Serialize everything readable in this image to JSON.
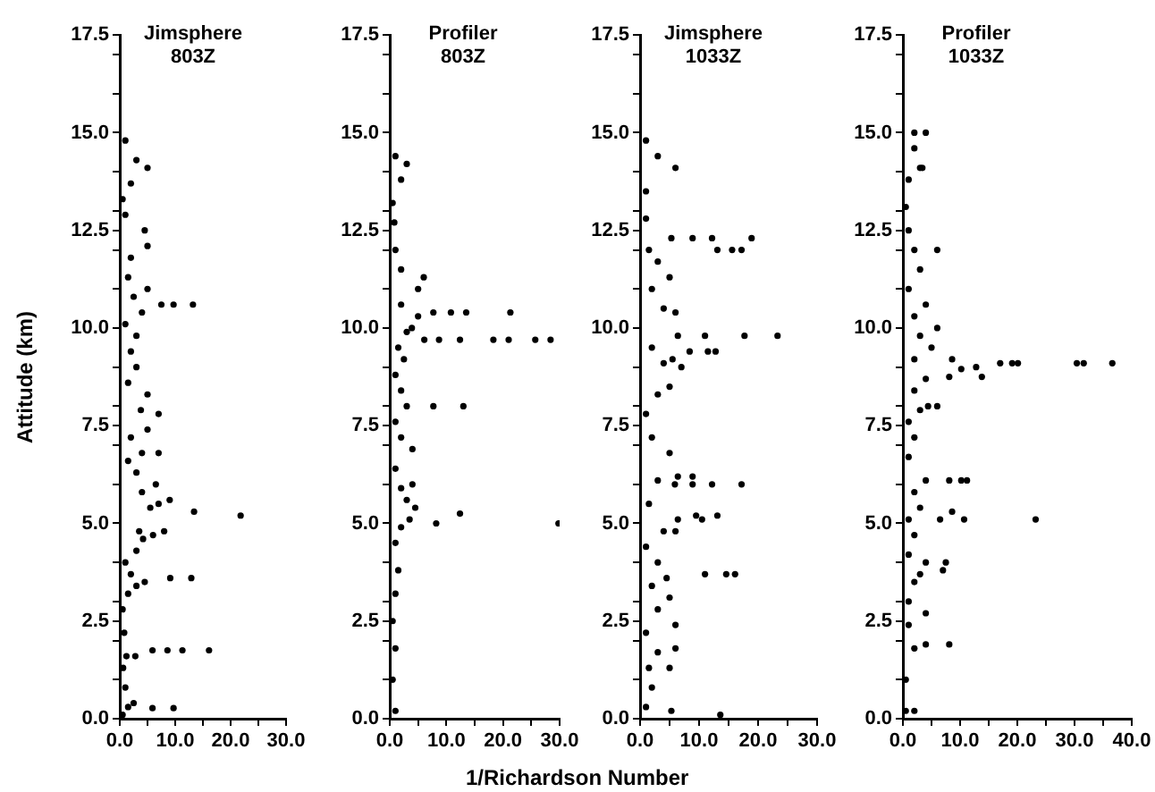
{
  "chart_data": [
    {
      "type": "scatter",
      "title": "Jimsphere 803Z",
      "ylabel": "Attitude (km)",
      "marker": "circle",
      "grid": false,
      "legend": false,
      "xlim": [
        0,
        30
      ],
      "xticks": [
        {
          "value": 0,
          "label": "0.0"
        },
        {
          "value": 5,
          "label": null
        },
        {
          "value": 10,
          "label": "10.0"
        },
        {
          "value": 15,
          "label": null
        },
        {
          "value": 20,
          "label": "20.0"
        },
        {
          "value": 25,
          "label": null
        },
        {
          "value": 30,
          "label": "30.0"
        }
      ],
      "ylim": [
        0,
        17.5
      ],
      "yticks": [
        {
          "value": 0,
          "label": "0.0"
        },
        {
          "value": 2.5,
          "label": "2.5"
        },
        {
          "value": 5,
          "label": "5.0"
        },
        {
          "value": 7.5,
          "label": "7.5"
        },
        {
          "value": 10,
          "label": "10.0"
        },
        {
          "value": 12.5,
          "label": "12.5"
        },
        {
          "value": 15,
          "label": "15.0"
        },
        {
          "value": 17.5,
          "label": "17.5"
        },
        {
          "value": 1,
          "label": null
        },
        {
          "value": 2,
          "label": null
        },
        {
          "value": 3,
          "label": null
        },
        {
          "value": 4,
          "label": null
        },
        {
          "value": 6,
          "label": null
        },
        {
          "value": 7,
          "label": null
        },
        {
          "value": 8,
          "label": null
        },
        {
          "value": 9,
          "label": null
        },
        {
          "value": 11,
          "label": null
        },
        {
          "value": 12,
          "label": null
        },
        {
          "value": 13,
          "label": null
        },
        {
          "value": 14,
          "label": null
        },
        {
          "value": 16,
          "label": null
        },
        {
          "value": 17,
          "label": null
        }
      ],
      "series": [
        {
          "color": "#000000",
          "x": [
            0.5,
            1.5,
            2.5,
            1,
            0.6,
            1.2,
            2.8,
            0.8,
            0.5,
            1.5,
            3,
            4.5,
            2,
            1,
            3,
            4.2,
            6,
            3.5,
            8,
            5.5,
            7,
            9,
            4,
            6.5,
            3,
            1.5,
            4,
            7,
            2,
            5,
            3.8,
            7,
            5,
            1.5,
            3,
            2,
            3,
            1,
            4,
            2.5,
            5,
            1.5,
            2,
            5,
            4.5,
            1,
            0.5,
            2,
            5,
            3,
            1,
            7.5,
            9.7,
            13.2,
            13.4,
            21.8,
            9.1,
            12.9,
            5.9,
            8.6,
            11.3,
            16.1,
            5.9,
            9.7
          ],
          "values": [
            0.1,
            0.3,
            0.4,
            0.8,
            1.3,
            1.6,
            1.6,
            2.2,
            2.8,
            3.2,
            3.4,
            3.5,
            3.7,
            4,
            4.3,
            4.6,
            4.7,
            4.8,
            4.8,
            5.4,
            5.5,
            5.6,
            5.8,
            6,
            6.3,
            6.6,
            6.8,
            6.8,
            7.2,
            7.4,
            7.9,
            7.8,
            8.3,
            8.6,
            9,
            9.4,
            9.8,
            10.1,
            10.4,
            10.8,
            11,
            11.3,
            11.8,
            12.1,
            12.5,
            12.9,
            13.3,
            13.7,
            14.1,
            14.3,
            14.8,
            10.6,
            10.6,
            10.6,
            5.3,
            5.2,
            3.6,
            3.6,
            1.75,
            1.75,
            1.75,
            1.75,
            0.27,
            0.27
          ]
        }
      ]
    },
    {
      "type": "scatter",
      "title": "Profiler 803Z",
      "xlabel": "1/Richardson Number",
      "marker": "circle",
      "grid": false,
      "legend": false,
      "xlim": [
        0,
        30
      ],
      "xticks": [
        {
          "value": 0,
          "label": "0.0"
        },
        {
          "value": 5,
          "label": null
        },
        {
          "value": 10,
          "label": "10.0"
        },
        {
          "value": 15,
          "label": null
        },
        {
          "value": 20,
          "label": "20.0"
        },
        {
          "value": 25,
          "label": null
        },
        {
          "value": 30,
          "label": "30.0"
        }
      ],
      "ylim": [
        0,
        17.5
      ],
      "yticks": [
        {
          "value": 0,
          "label": "0.0"
        },
        {
          "value": 2.5,
          "label": "2.5"
        },
        {
          "value": 5,
          "label": "5.0"
        },
        {
          "value": 7.5,
          "label": "7.5"
        },
        {
          "value": 10,
          "label": "10.0"
        },
        {
          "value": 12.5,
          "label": "12.5"
        },
        {
          "value": 15,
          "label": "15.0"
        },
        {
          "value": 17.5,
          "label": "17.5"
        },
        {
          "value": 1,
          "label": null
        },
        {
          "value": 2,
          "label": null
        },
        {
          "value": 3,
          "label": null
        },
        {
          "value": 4,
          "label": null
        },
        {
          "value": 6,
          "label": null
        },
        {
          "value": 7,
          "label": null
        },
        {
          "value": 8,
          "label": null
        },
        {
          "value": 9,
          "label": null
        },
        {
          "value": 11,
          "label": null
        },
        {
          "value": 12,
          "label": null
        },
        {
          "value": 13,
          "label": null
        },
        {
          "value": 14,
          "label": null
        },
        {
          "value": 16,
          "label": null
        },
        {
          "value": 17,
          "label": null
        }
      ],
      "series": [
        {
          "color": "#000000",
          "x": [
            1,
            0.5,
            1,
            0.5,
            1,
            1.5,
            1,
            2,
            3.5,
            4.5,
            3,
            2,
            4,
            1,
            4,
            2,
            1,
            3,
            2,
            1,
            2.5,
            1.5,
            3,
            5,
            2,
            5,
            6,
            2,
            1,
            0.8,
            0.5,
            2,
            3,
            1,
            7.7,
            10.8,
            13.5,
            21.3,
            6.1,
            8.7,
            12.4,
            18.3,
            21,
            25.7,
            28.4,
            3.9,
            7.7,
            13,
            12.4,
            8.2,
            29.8
          ],
          "values": [
            0.2,
            1,
            1.8,
            2.5,
            3.2,
            3.8,
            4.5,
            4.9,
            5.1,
            5.4,
            5.6,
            5.9,
            6,
            6.4,
            6.9,
            7.2,
            7.6,
            8,
            8.4,
            8.8,
            9.2,
            9.5,
            9.9,
            10.3,
            10.6,
            11,
            11.3,
            11.5,
            12,
            12.7,
            13.2,
            13.8,
            14.2,
            14.4,
            10.4,
            10.4,
            10.4,
            10.4,
            9.7,
            9.7,
            9.7,
            9.7,
            9.7,
            9.7,
            9.7,
            10,
            8,
            8,
            5.25,
            5,
            5
          ]
        }
      ]
    },
    {
      "type": "scatter",
      "title": "Jimsphere 1033Z",
      "marker": "circle",
      "grid": false,
      "legend": false,
      "xlim": [
        0,
        30
      ],
      "xticks": [
        {
          "value": 0,
          "label": "0.0"
        },
        {
          "value": 5,
          "label": null
        },
        {
          "value": 10,
          "label": "10.0"
        },
        {
          "value": 15,
          "label": null
        },
        {
          "value": 20,
          "label": "20.0"
        },
        {
          "value": 25,
          "label": null
        },
        {
          "value": 30,
          "label": "30.0"
        }
      ],
      "ylim": [
        0,
        17.5
      ],
      "yticks": [
        {
          "value": 0,
          "label": "0.0"
        },
        {
          "value": 2.5,
          "label": "2.5"
        },
        {
          "value": 5,
          "label": "5.0"
        },
        {
          "value": 7.5,
          "label": "7.5"
        },
        {
          "value": 10,
          "label": "10.0"
        },
        {
          "value": 12.5,
          "label": "12.5"
        },
        {
          "value": 15,
          "label": "15.0"
        },
        {
          "value": 17.5,
          "label": "17.5"
        },
        {
          "value": 1,
          "label": null
        },
        {
          "value": 2,
          "label": null
        },
        {
          "value": 3,
          "label": null
        },
        {
          "value": 4,
          "label": null
        },
        {
          "value": 6,
          "label": null
        },
        {
          "value": 7,
          "label": null
        },
        {
          "value": 8,
          "label": null
        },
        {
          "value": 9,
          "label": null
        },
        {
          "value": 11,
          "label": null
        },
        {
          "value": 12,
          "label": null
        },
        {
          "value": 13,
          "label": null
        },
        {
          "value": 14,
          "label": null
        },
        {
          "value": 16,
          "label": null
        },
        {
          "value": 17,
          "label": null
        }
      ],
      "series": [
        {
          "color": "#000000",
          "x": [
            1,
            2,
            1.5,
            5,
            3,
            6,
            1,
            6,
            3,
            5,
            2,
            4.5,
            3,
            1,
            4,
            6,
            1.5,
            3,
            5,
            2,
            1,
            3,
            5,
            7,
            4,
            5.5,
            2,
            6,
            4,
            2,
            5,
            3,
            1.5,
            1,
            1,
            6,
            3,
            1,
            5.3,
            8.9,
            12.2,
            18.9,
            13.1,
            15.6,
            17.2,
            6.4,
            11,
            17.7,
            23.3,
            8.4,
            11.5,
            12.8,
            5.9,
            8.9,
            12.2,
            17.2,
            6.4,
            8.9,
            9.5,
            13.1,
            6.4,
            10.5,
            11,
            14.6,
            16.1,
            13.6,
            5.3
          ],
          "values": [
            0.3,
            0.8,
            1.3,
            1.3,
            1.7,
            1.8,
            2.2,
            2.4,
            2.8,
            3.1,
            3.4,
            3.6,
            4,
            4.4,
            4.8,
            4.8,
            5.5,
            6.1,
            6.8,
            7.2,
            7.8,
            8.3,
            8.5,
            9,
            9.1,
            9.2,
            9.5,
            10.4,
            10.5,
            11,
            11.3,
            11.7,
            12,
            12.8,
            13.5,
            14.1,
            14.4,
            14.8,
            12.3,
            12.3,
            12.3,
            12.3,
            12,
            12,
            12,
            9.8,
            9.8,
            9.8,
            9.8,
            9.4,
            9.4,
            9.4,
            6,
            6,
            6,
            6,
            6.2,
            6.2,
            5.2,
            5.2,
            5.1,
            5.1,
            3.7,
            3.7,
            3.7,
            0.1,
            0.2
          ]
        }
      ]
    },
    {
      "type": "scatter",
      "title": "Profiler 1033Z",
      "marker": "circle",
      "grid": false,
      "legend": false,
      "xlim": [
        0,
        40
      ],
      "xticks": [
        {
          "value": 0,
          "label": "0.0"
        },
        {
          "value": 5,
          "label": null
        },
        {
          "value": 10,
          "label": "10.0"
        },
        {
          "value": 15,
          "label": null
        },
        {
          "value": 20,
          "label": "20.0"
        },
        {
          "value": 25,
          "label": null
        },
        {
          "value": 30,
          "label": "30.0"
        },
        {
          "value": 35,
          "label": null
        },
        {
          "value": 40,
          "label": "40.0"
        }
      ],
      "ylim": [
        0,
        17.5
      ],
      "yticks": [
        {
          "value": 0,
          "label": "0.0"
        },
        {
          "value": 2.5,
          "label": "2.5"
        },
        {
          "value": 5,
          "label": "5.0"
        },
        {
          "value": 7.5,
          "label": "7.5"
        },
        {
          "value": 10,
          "label": "10.0"
        },
        {
          "value": 12.5,
          "label": "12.5"
        },
        {
          "value": 15,
          "label": "15.0"
        },
        {
          "value": 17.5,
          "label": "17.5"
        },
        {
          "value": 1,
          "label": null
        },
        {
          "value": 2,
          "label": null
        },
        {
          "value": 3,
          "label": null
        },
        {
          "value": 4,
          "label": null
        },
        {
          "value": 6,
          "label": null
        },
        {
          "value": 7,
          "label": null
        },
        {
          "value": 8,
          "label": null
        },
        {
          "value": 9,
          "label": null
        },
        {
          "value": 11,
          "label": null
        },
        {
          "value": 12,
          "label": null
        },
        {
          "value": 13,
          "label": null
        },
        {
          "value": 14,
          "label": null
        },
        {
          "value": 16,
          "label": null
        },
        {
          "value": 17,
          "label": null
        }
      ],
      "series": [
        {
          "color": "#000000",
          "x": [
            0.5,
            2,
            0.5,
            2,
            4,
            1,
            4,
            1,
            2,
            3,
            1,
            4,
            2,
            1,
            3,
            2,
            4,
            1,
            2,
            1,
            3,
            2,
            4,
            2,
            5,
            3,
            6,
            2,
            4,
            1,
            3,
            2,
            1,
            0.5,
            1,
            3,
            2,
            2,
            4,
            30.4,
            31.6,
            36.6,
            17,
            19.1,
            20.1,
            12.8,
            10.2,
            13.8,
            8.1,
            8.6,
            8.1,
            10.2,
            11.2,
            10.7,
            23.2,
            6.5,
            8.6,
            4.4,
            6,
            7,
            7.5,
            8.1,
            6,
            3.4
          ],
          "values": [
            0.2,
            0.2,
            1,
            1.8,
            1.9,
            2.4,
            2.7,
            3,
            3.5,
            3.7,
            4.2,
            4,
            4.7,
            5.1,
            5.4,
            5.8,
            6.1,
            6.7,
            7.2,
            7.6,
            7.9,
            8.4,
            8.7,
            9.2,
            9.5,
            9.8,
            10,
            10.3,
            10.6,
            11,
            11.5,
            12,
            12.5,
            13.1,
            13.8,
            14.1,
            14.6,
            15,
            15,
            9.1,
            9.1,
            9.1,
            9.1,
            9.1,
            9.1,
            9,
            8.95,
            8.75,
            8.75,
            9.2,
            6.1,
            6.1,
            6.1,
            5.1,
            5.1,
            5.1,
            5.3,
            8,
            8,
            3.8,
            4,
            1.9,
            12,
            14.1
          ]
        }
      ]
    }
  ]
}
